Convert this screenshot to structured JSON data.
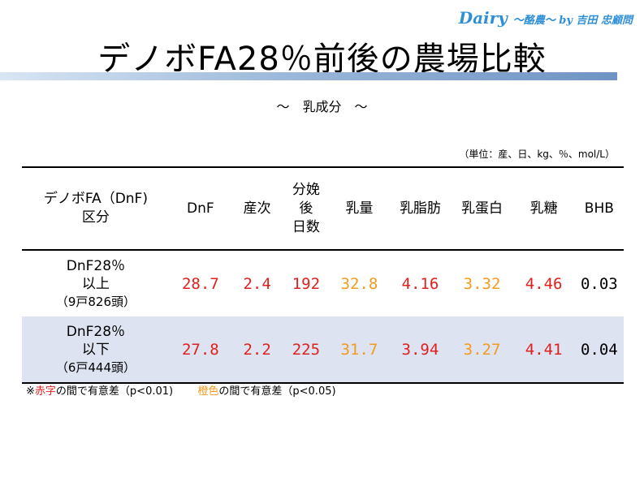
{
  "brand": {
    "main": "Dairy",
    "sub": "～酪農～ by 吉田 忠顧問"
  },
  "title": "デノボFA28％前後の農場比較",
  "subtitle": "～　乳成分　～",
  "unit_note": "（単位：産、日、kg、％、mol/L）",
  "table": {
    "header_label_line1": "デノボFA（DnF)",
    "header_label_line2": "区分",
    "columns": [
      {
        "label": "DnF"
      },
      {
        "label": "産次"
      },
      {
        "line1": "分娩",
        "line2": "後",
        "line3": "日数"
      },
      {
        "label": "乳量"
      },
      {
        "label": "乳脂肪"
      },
      {
        "label": "乳蛋白"
      },
      {
        "label": "乳糖"
      },
      {
        "label": "BHB"
      }
    ],
    "rows": [
      {
        "label1": "DnF28％",
        "label2": "以上",
        "label3": "（9戸826頭）",
        "cells": [
          "28.7",
          "2.4",
          "192",
          "32.8",
          "4.16",
          "3.32",
          "4.46",
          "0.03"
        ]
      },
      {
        "label1": "DnF28％",
        "label2": "以下",
        "label3": "（6戸444頭）",
        "cells": [
          "27.8",
          "2.2",
          "225",
          "31.7",
          "3.94",
          "3.27",
          "4.41",
          "0.04"
        ]
      }
    ],
    "cell_colors": [
      "red",
      "red",
      "red",
      "orange",
      "red",
      "orange",
      "red",
      "black"
    ]
  },
  "footnote": {
    "prefix": "※",
    "red_word": "赤字",
    "red_text": "の間で有意差（p<0.01)",
    "orange_word": "橙色",
    "orange_text": "の間で有意差（p<0.05)"
  },
  "colors": {
    "significant_p01": "#e0201d",
    "significant_p05": "#f29b1c",
    "alt_row": "#dde3f1",
    "brand": "#2f8fd6"
  }
}
